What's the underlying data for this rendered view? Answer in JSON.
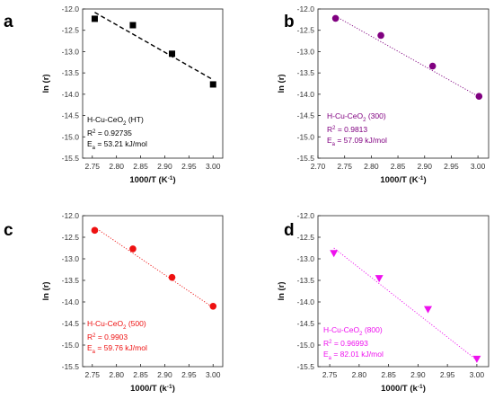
{
  "chart_data": [
    {
      "panel": "a",
      "type": "scatter",
      "xlabel": "1000/T (K",
      "xlabel_sup": "-1",
      "xlabel_end": ")",
      "ylabel": "ln (r)",
      "xlim": [
        2.73,
        3.02
      ],
      "ylim": [
        -15.5,
        -12.0
      ],
      "xticks": [
        "2.75",
        "2.80",
        "2.85",
        "2.90",
        "2.95",
        "3.00"
      ],
      "yticks": [
        "-12.0",
        "-12.5",
        "-13.0",
        "-13.5",
        "-14.0",
        "-14.5",
        "-15.0",
        "-15.5"
      ],
      "marker": "square",
      "color": "#000000",
      "fit_style": "dashed",
      "x": [
        2.755,
        2.834,
        2.915,
        3.0
      ],
      "y": [
        -12.23,
        -12.38,
        -13.05,
        -13.77
      ],
      "fit": [
        [
          2.755,
          -12.08
        ],
        [
          3.0,
          -13.66
        ]
      ],
      "annotation": {
        "name_main": "H-Cu-CeO",
        "name_sub": "2",
        "name_rest": " (HT)",
        "r2_prefix": "R",
        "r2_sup": "2",
        "r2_value": " = 0.92735",
        "ea_prefix": "E",
        "ea_sub": "a",
        "ea_value": " = 53.21 kJ/mol",
        "color": "#000000"
      }
    },
    {
      "panel": "b",
      "type": "scatter",
      "xlabel": "1000/T (K",
      "xlabel_sup": "-1",
      "xlabel_end": ")",
      "ylabel": "ln (r)",
      "xlim": [
        2.7,
        3.02
      ],
      "ylim": [
        -15.5,
        -12.0
      ],
      "xticks": [
        "2.70",
        "2.75",
        "2.80",
        "2.85",
        "2.90",
        "2.95",
        "3.00"
      ],
      "yticks": [
        "-12.0",
        "-12.5",
        "-13.0",
        "-13.5",
        "-14.0",
        "-14.5",
        "-15.0",
        "-15.5"
      ],
      "marker": "circle",
      "color": "#800080",
      "fit_style": "dotted",
      "x": [
        2.733,
        2.818,
        2.915,
        3.002
      ],
      "y": [
        -12.22,
        -12.62,
        -13.34,
        -14.05
      ],
      "fit": [
        [
          2.733,
          -12.17
        ],
        [
          3.002,
          -14.06
        ]
      ],
      "annotation": {
        "name_main": "H-Cu-CeO",
        "name_sub": "2",
        "name_rest": " (300)",
        "r2_prefix": "R",
        "r2_sup": "2",
        "r2_value": " = 0.9813",
        "ea_prefix": "E",
        "ea_sub": "a",
        "ea_value": " = 57.09 kJ/mol",
        "color": "#800080"
      }
    },
    {
      "panel": "c",
      "type": "scatter",
      "xlabel": "1000/T (k",
      "xlabel_sup": "-1",
      "xlabel_end": ")",
      "ylabel": "ln (r)",
      "xlim": [
        2.73,
        3.02
      ],
      "ylim": [
        -15.5,
        -12.0
      ],
      "xticks": [
        "2.75",
        "2.80",
        "2.85",
        "2.90",
        "2.95",
        "3.00"
      ],
      "yticks": [
        "-12.0",
        "-12.5",
        "-13.0",
        "-13.5",
        "-14.0",
        "-14.5",
        "-15.0",
        "-15.5"
      ],
      "marker": "circle",
      "color": "#ee1111",
      "fit_style": "dotted",
      "x": [
        2.755,
        2.834,
        2.915,
        3.0
      ],
      "y": [
        -12.34,
        -12.77,
        -13.43,
        -14.1
      ],
      "fit": [
        [
          2.755,
          -12.27
        ],
        [
          3.0,
          -14.13
        ]
      ],
      "annotation": {
        "name_main": "H-Cu-CeO",
        "name_sub": "2",
        "name_rest": " (500)",
        "r2_prefix": "R",
        "r2_sup": "2",
        "r2_value": " = 0.9903",
        "ea_prefix": "E",
        "ea_sub": "a",
        "ea_value": " = 59.76 kJ/mol",
        "color": "#ee1111"
      }
    },
    {
      "panel": "d",
      "type": "scatter",
      "xlabel": "1000/T (k",
      "xlabel_sup": "-1",
      "xlabel_end": ")",
      "ylabel": "ln (r)",
      "xlim": [
        2.73,
        3.02
      ],
      "ylim": [
        -15.5,
        -12.0
      ],
      "xticks": [
        "2.75",
        "2.80",
        "2.85",
        "2.90",
        "2.95",
        "3.00"
      ],
      "yticks": [
        "-12.0",
        "-12.5",
        "-13.0",
        "-13.5",
        "-14.0",
        "-14.5",
        "-15.0",
        "-15.5"
      ],
      "marker": "triangle-down",
      "color": "#ee11ee",
      "fit_style": "dotted",
      "x": [
        2.757,
        2.834,
        2.917,
        3.0
      ],
      "y": [
        -12.87,
        -13.45,
        -14.17,
        -15.32
      ],
      "fit": [
        [
          2.757,
          -12.75
        ],
        [
          3.0,
          -15.35
        ]
      ],
      "annotation": {
        "name_main": "H-Cu-CeO",
        "name_sub": "2",
        "name_rest": " (800)",
        "r2_prefix": "R",
        "r2_sup": "2",
        "r2_value": " = 0.96993",
        "ea_prefix": "E",
        "ea_sub": "a",
        "ea_value": " = 82.01 kJ/mol",
        "color": "#ee11ee"
      }
    }
  ]
}
